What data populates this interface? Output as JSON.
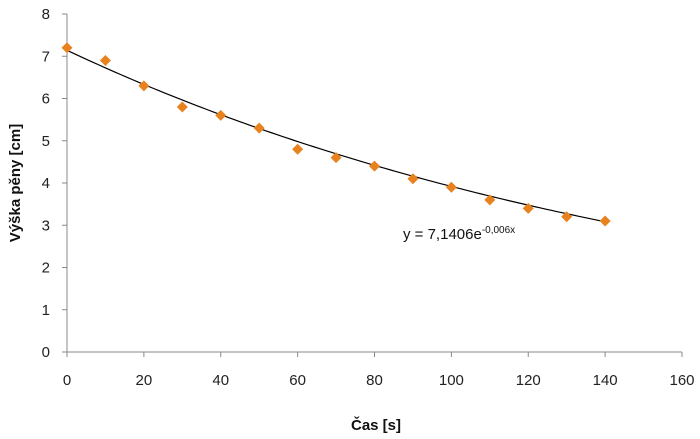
{
  "chart_data": {
    "type": "scatter",
    "xlabel": "Čas [s]",
    "ylabel": "Výška pěny [cm]",
    "xlim": [
      0,
      160
    ],
    "ylim": [
      0,
      8
    ],
    "x_ticks": [
      0,
      20,
      40,
      60,
      80,
      100,
      120,
      140,
      160
    ],
    "y_ticks": [
      0,
      1,
      2,
      3,
      4,
      5,
      6,
      7,
      8
    ],
    "grid": false,
    "legend": "none",
    "marker_color": "#E8821E",
    "marker_shape": "diamond",
    "series": [
      {
        "x": [
          0,
          10,
          20,
          30,
          40,
          50,
          60,
          70,
          80,
          90,
          100,
          110,
          120,
          130,
          140
        ],
        "y": [
          7.2,
          6.9,
          6.3,
          5.8,
          5.6,
          5.3,
          4.8,
          4.6,
          4.4,
          4.1,
          3.9,
          3.6,
          3.4,
          3.2,
          3.1
        ]
      }
    ],
    "trendline": {
      "type": "exponential",
      "a": 7.1406,
      "b": -0.006,
      "x_range": [
        0,
        140
      ],
      "color": "#000000",
      "equation_prefix": "y = 7,1406e",
      "equation_exponent": "-0,006x"
    }
  }
}
